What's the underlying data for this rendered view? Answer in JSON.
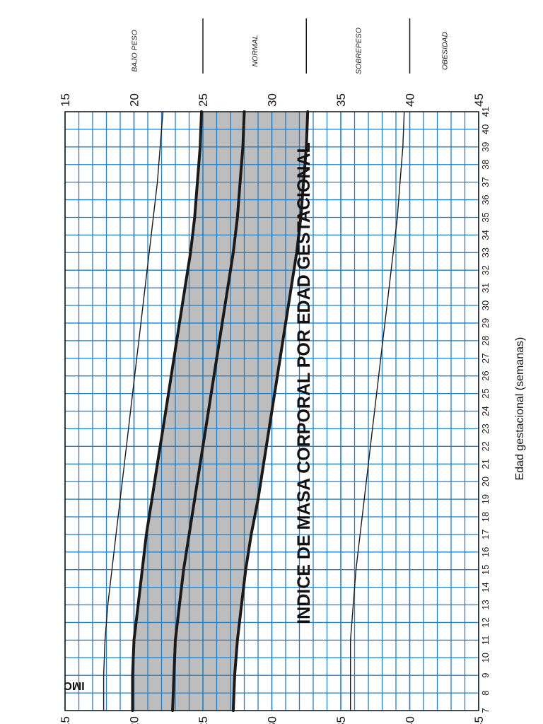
{
  "chart_data": {
    "type": "line",
    "title": "INDICE DE MASA CORPORAL POR EDAD GESTACIONAL",
    "xlabel": "Edad gestacional (semanas)",
    "ylabel": "IMC",
    "xlim": [
      7,
      41
    ],
    "ylim": [
      15,
      45
    ],
    "x_ticks": [
      7,
      8,
      9,
      10,
      11,
      12,
      13,
      14,
      15,
      16,
      17,
      18,
      19,
      20,
      21,
      22,
      23,
      24,
      25,
      26,
      27,
      28,
      29,
      30,
      31,
      32,
      33,
      34,
      35,
      36,
      37,
      38,
      39,
      40,
      41
    ],
    "y_ticks": [
      15,
      20,
      25,
      30,
      35,
      40,
      45
    ],
    "grid": true,
    "orientation": "rotated 90° counter-clockwise",
    "x": [
      7,
      9,
      11,
      13,
      15,
      17,
      19,
      21,
      23,
      25,
      27,
      29,
      31,
      33,
      35,
      37,
      39,
      41
    ],
    "series": [
      {
        "name": "",
        "style": "thin",
        "values": [
          17.8,
          17.8,
          17.9,
          18.1,
          18.4,
          18.7,
          19.0,
          19.3,
          19.6,
          19.9,
          20.2,
          20.5,
          20.8,
          21.1,
          21.4,
          21.7,
          21.9,
          22.1
        ]
      },
      {
        "name": "",
        "style": "thick",
        "values": [
          19.9,
          19.9,
          20.0,
          20.3,
          20.6,
          20.9,
          21.3,
          21.7,
          22.1,
          22.5,
          22.9,
          23.3,
          23.7,
          24.1,
          24.4,
          24.6,
          24.8,
          24.9
        ]
      },
      {
        "name": "",
        "style": "thick",
        "values": [
          22.8,
          22.9,
          23.0,
          23.3,
          23.6,
          24.0,
          24.4,
          24.8,
          25.2,
          25.6,
          26.0,
          26.4,
          26.8,
          27.2,
          27.5,
          27.7,
          27.9,
          28.0
        ]
      },
      {
        "name": "",
        "style": "thick",
        "values": [
          27.2,
          27.3,
          27.5,
          27.8,
          28.1,
          28.5,
          29.0,
          29.4,
          29.8,
          30.2,
          30.6,
          31.0,
          31.4,
          31.8,
          32.1,
          32.3,
          32.5,
          32.6
        ]
      },
      {
        "name": "",
        "style": "thin",
        "values": [
          35.7,
          35.7,
          35.7,
          35.9,
          36.1,
          36.4,
          36.7,
          37.0,
          37.3,
          37.6,
          37.9,
          38.2,
          38.5,
          38.8,
          39.1,
          39.3,
          39.5,
          39.6
        ]
      }
    ],
    "shaded_band": {
      "lower_series": 1,
      "upper_series": 3,
      "color": "#bdbdbd"
    },
    "categories": [
      {
        "label": "OBESIDAD",
        "from": 40,
        "to": 45
      },
      {
        "label": "SOBREPESO",
        "from": 32.5,
        "to": 40
      },
      {
        "label": "NORMAL",
        "from": 25,
        "to": 32.5
      },
      {
        "label": "BAJO PESO",
        "from": 15,
        "to": 25
      }
    ],
    "colors": {
      "grid": "#1f7fc8",
      "band": "#bdbdbd",
      "line": "#1a1a1a"
    }
  }
}
